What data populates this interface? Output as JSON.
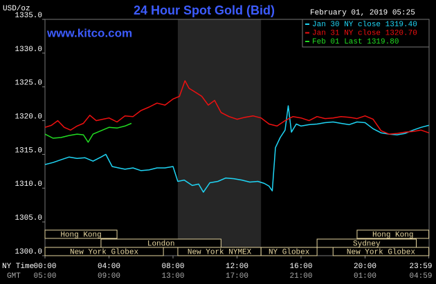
{
  "chart_data": {
    "type": "line",
    "title": "24 Hour Spot Gold (Bid)",
    "subtitle": "February 01, 2019 05:25",
    "source": "www.kitco.com",
    "ylabel": "USD/oz",
    "xlabel": "NY Time",
    "x2label": "GMT",
    "xlim": [
      0,
      24
    ],
    "ylim": [
      1300,
      1335
    ],
    "xticks": [
      {
        "value": 0,
        "label": "00:00"
      },
      {
        "value": 4,
        "label": "04:00"
      },
      {
        "value": 8,
        "label": "08:00"
      },
      {
        "value": 12,
        "label": "12:00"
      },
      {
        "value": 16,
        "label": "16:00"
      },
      {
        "value": 20,
        "label": "20:00"
      },
      {
        "value": 23.983,
        "label": "23:59"
      }
    ],
    "x2ticks": [
      {
        "value": 0,
        "label": "05:00"
      },
      {
        "value": 4,
        "label": "09:00"
      },
      {
        "value": 8,
        "label": "13:00"
      },
      {
        "value": 12,
        "label": "17:00"
      },
      {
        "value": 16,
        "label": "21:00"
      },
      {
        "value": 20,
        "label": "01:00"
      },
      {
        "value": 23.983,
        "label": "04:59"
      }
    ],
    "yticks": [
      {
        "value": 1300,
        "label": "1300.0"
      },
      {
        "value": 1305,
        "label": "1305.0"
      },
      {
        "value": 1310,
        "label": "1310.0"
      },
      {
        "value": 1315,
        "label": "1315.0"
      },
      {
        "value": 1320,
        "label": "1320.0"
      },
      {
        "value": 1325,
        "label": "1325.0"
      },
      {
        "value": 1330,
        "label": "1330.0"
      },
      {
        "value": 1335,
        "label": "1335.0"
      }
    ],
    "grid": false,
    "series": [
      {
        "name": "Jan 30 NY close 1319.40",
        "color": "#1fd5f5",
        "x": [
          0,
          0.5,
          1,
          1.5,
          2,
          2.5,
          3,
          3.5,
          3.8,
          4.2,
          4.6,
          5,
          5.5,
          6,
          6.5,
          7,
          7.5,
          8,
          8.3,
          8.7,
          9.2,
          9.6,
          9.9,
          10.3,
          10.8,
          11.3,
          11.8,
          12.3,
          12.8,
          13.3,
          13.7,
          14,
          14.2,
          14.4,
          14.7,
          15,
          15.2,
          15.4,
          15.7,
          16,
          16.5,
          17,
          17.5,
          18,
          18.5,
          19,
          19.5,
          20,
          20.5,
          21,
          21.5,
          22,
          22.5,
          23,
          23.5,
          23.983
        ],
        "values": [
          1313.5,
          1313.8,
          1314.2,
          1314.6,
          1314.4,
          1314.5,
          1314,
          1314.6,
          1315,
          1313.2,
          1313,
          1312.8,
          1313,
          1312.6,
          1312.7,
          1313,
          1313,
          1313.2,
          1311,
          1311.2,
          1310.4,
          1310.6,
          1309.4,
          1310.8,
          1311,
          1311.5,
          1311.4,
          1311.2,
          1310.9,
          1311,
          1310.7,
          1310.3,
          1309.6,
          1316,
          1317.5,
          1318.6,
          1322.2,
          1318.3,
          1319.5,
          1319.2,
          1319.4,
          1319.5,
          1319.7,
          1319.8,
          1319.6,
          1319.4,
          1319.8,
          1319.7,
          1318.8,
          1318.2,
          1318,
          1317.9,
          1318.1,
          1318.6,
          1319,
          1319.3
        ]
      },
      {
        "name": "Jan 31 NY close 1320.70",
        "color": "#f01010",
        "x": [
          0,
          0.4,
          0.8,
          1.2,
          1.6,
          2,
          2.4,
          2.8,
          3.2,
          3.6,
          4,
          4.5,
          5,
          5.5,
          6,
          6.5,
          7,
          7.5,
          8,
          8.4,
          8.75,
          9,
          9.4,
          9.8,
          10.2,
          10.6,
          11,
          11.5,
          12,
          12.5,
          13,
          13.5,
          14,
          14.5,
          15,
          15.5,
          16,
          16.5,
          17,
          17.5,
          18,
          18.5,
          19,
          19.5,
          20,
          20.5,
          21,
          21.5,
          22,
          22.5,
          23,
          23.5,
          23.983
        ],
        "values": [
          1319,
          1319.3,
          1320,
          1319,
          1318.6,
          1319.2,
          1319.6,
          1320.8,
          1320,
          1320.2,
          1320.4,
          1319.8,
          1320.7,
          1320.6,
          1321.5,
          1322,
          1322.6,
          1322.3,
          1323.2,
          1323.6,
          1325.9,
          1324.8,
          1324.2,
          1323.6,
          1322.3,
          1323,
          1321.2,
          1320.6,
          1320.2,
          1320.5,
          1320.7,
          1320.4,
          1319.5,
          1319.2,
          1320,
          1320.6,
          1320.4,
          1320,
          1320.6,
          1320.3,
          1320.4,
          1320.6,
          1320.5,
          1320.3,
          1320.7,
          1320.2,
          1318.5,
          1318,
          1318.1,
          1318.3,
          1318.4,
          1318.6,
          1318.2
        ]
      },
      {
        "name": "Feb 01 Last 1319.80",
        "color": "#22dd22",
        "x": [
          0,
          0.5,
          1,
          1.5,
          2,
          2.4,
          2.7,
          3,
          3.5,
          4,
          4.5,
          5,
          5.4
        ],
        "values": [
          1318,
          1317.4,
          1317.5,
          1317.8,
          1318,
          1317.9,
          1316.8,
          1318,
          1318.5,
          1319,
          1318.9,
          1319.2,
          1319.6
        ]
      }
    ],
    "session_color": "#e6d6a0",
    "sessions": [
      {
        "name": "Hong Kong",
        "start": 0,
        "end": 4.5
      },
      {
        "name": "London",
        "start": 3.5,
        "end": 11
      },
      {
        "name": "New York Globex",
        "start": 0,
        "end": 7.4
      },
      {
        "name": "New York NYMEX",
        "start": 8.3,
        "end": 13.5
      },
      {
        "name": "NY Globex",
        "start": 13.5,
        "end": 17
      },
      {
        "name": "Hong Kong",
        "start": 19.5,
        "end": 23.983
      },
      {
        "name": "Sydney",
        "start": 17,
        "end": 23.2
      },
      {
        "name": "New York Globex",
        "start": 18,
        "end": 23.983
      }
    ]
  }
}
